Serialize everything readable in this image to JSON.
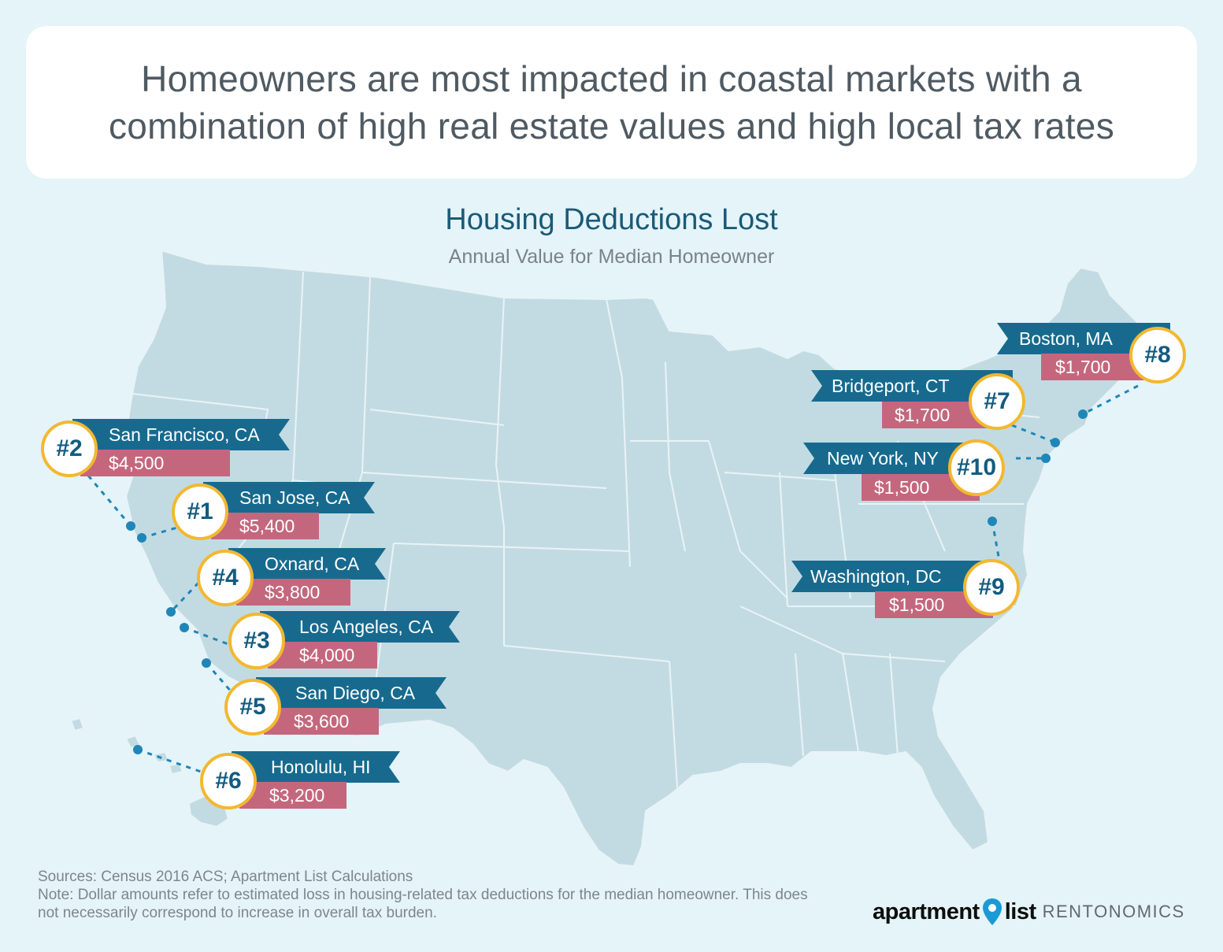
{
  "headline": {
    "line1": "Homeowners are most impacted in coastal markets with a",
    "line2": "combination of high real estate values and high local tax rates"
  },
  "map": {
    "title": "Housing Deductions Lost",
    "subtitle": "Annual Value for Median Homeowner",
    "colors": {
      "land": "#c2dbe3",
      "borders": "#e9f3f6",
      "ribbon": "#176a8e",
      "value": "#c4677d",
      "badge_ring": "#f3b830",
      "connector": "#1f86b8"
    },
    "markers": [
      {
        "rank": "#1",
        "city": "San Jose, CA",
        "value": "$5,400"
      },
      {
        "rank": "#2",
        "city": "San Francisco, CA",
        "value": "$4,500"
      },
      {
        "rank": "#3",
        "city": "Los Angeles, CA",
        "value": "$4,000"
      },
      {
        "rank": "#4",
        "city": "Oxnard, CA",
        "value": "$3,800"
      },
      {
        "rank": "#5",
        "city": "San Diego, CA",
        "value": "$3,600"
      },
      {
        "rank": "#6",
        "city": "Honolulu, HI",
        "value": "$3,200"
      },
      {
        "rank": "#7",
        "city": "Bridgeport, CT",
        "value": "$1,700"
      },
      {
        "rank": "#8",
        "city": "Boston, MA",
        "value": "$1,700"
      },
      {
        "rank": "#9",
        "city": "Washington, DC",
        "value": "$1,500"
      },
      {
        "rank": "#10",
        "city": "New York, NY",
        "value": "$1,500"
      }
    ]
  },
  "footnote": {
    "sources": "Sources: Census 2016 ACS; Apartment List Calculations",
    "note": "Note: Dollar amounts refer to estimated loss in housing-related tax deductions for the median homeowner. This does not necessarily correspond to increase in overall tax burden."
  },
  "logo": {
    "brand_left": "apartment",
    "brand_right": "list",
    "tagline": "RENTONOMICS",
    "pin_icon": "location-pin-icon"
  }
}
